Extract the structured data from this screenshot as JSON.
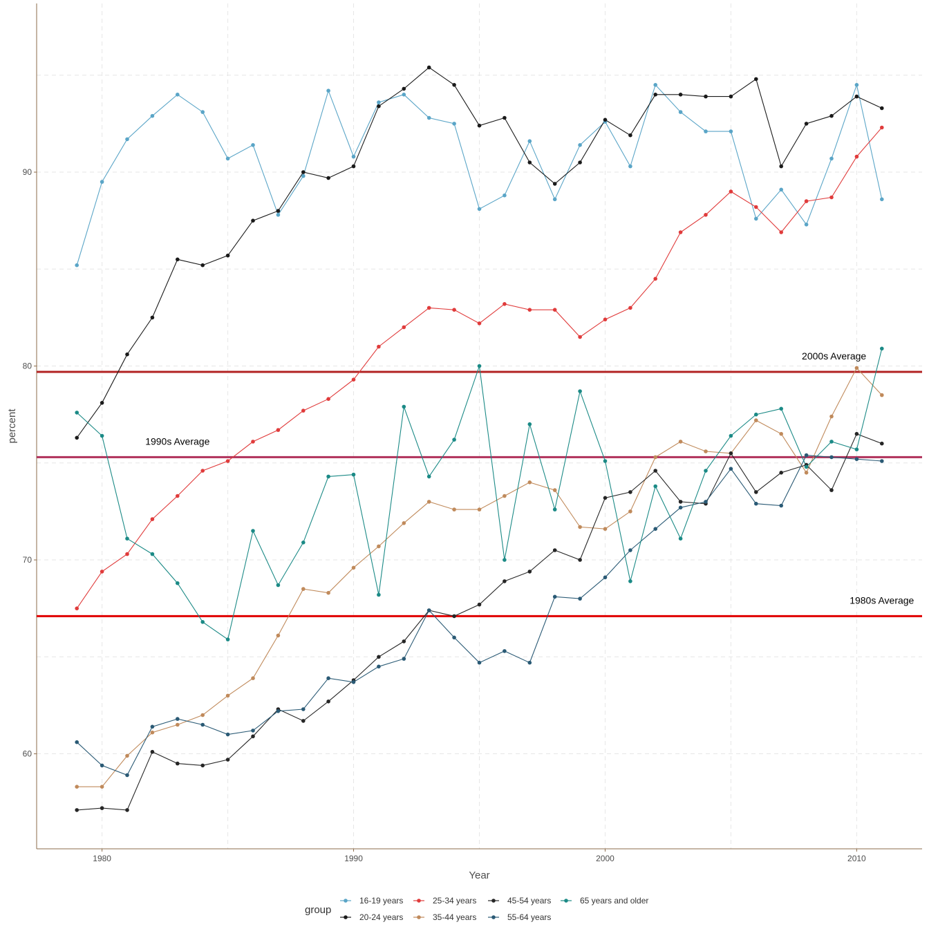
{
  "chart_data": {
    "type": "line",
    "xlabel": "Year",
    "ylabel": "percent",
    "xlim": [
      1977.4,
      2012.6
    ],
    "ylim": [
      55.1,
      98.7
    ],
    "x_ticks": [
      1980,
      1990,
      2000,
      2010
    ],
    "y_ticks": [
      60,
      70,
      80,
      90
    ],
    "grid": "dashed major and minor",
    "legend": {
      "title": "group",
      "position": "bottom"
    },
    "x": [
      1979,
      1980,
      1981,
      1982,
      1983,
      1984,
      1985,
      1986,
      1987,
      1988,
      1989,
      1990,
      1991,
      1992,
      1993,
      1994,
      1995,
      1996,
      1997,
      1998,
      1999,
      2000,
      2001,
      2002,
      2003,
      2004,
      2005,
      2006,
      2007,
      2008,
      2009,
      2010,
      2011
    ],
    "series": [
      {
        "name": "16-19 years",
        "color": "#5aa5c7",
        "values": [
          85.2,
          89.5,
          91.7,
          92.9,
          94.0,
          93.1,
          90.7,
          91.4,
          87.8,
          89.8,
          94.2,
          90.8,
          93.6,
          94.0,
          92.8,
          92.5,
          88.1,
          88.8,
          91.6,
          88.6,
          91.4,
          92.6,
          90.3,
          94.5,
          93.1,
          92.1,
          92.1,
          87.6,
          89.1,
          87.3,
          90.7,
          94.5,
          88.6
        ]
      },
      {
        "name": "20-24 years",
        "color": "#1a1a1a",
        "values": [
          76.3,
          78.1,
          80.6,
          82.5,
          85.5,
          85.2,
          85.7,
          87.5,
          88.0,
          90.0,
          89.7,
          90.3,
          93.4,
          94.3,
          95.4,
          94.5,
          92.4,
          92.8,
          90.5,
          89.4,
          90.5,
          92.7,
          91.9,
          94.0,
          94.0,
          93.9,
          93.9,
          94.8,
          90.3,
          92.5,
          92.9,
          93.9,
          93.3
        ]
      },
      {
        "name": "25-34 years",
        "color": "#e03b3b",
        "values": [
          67.5,
          69.4,
          70.3,
          72.1,
          73.3,
          74.6,
          75.1,
          76.1,
          76.7,
          77.7,
          78.3,
          79.3,
          81.0,
          82.0,
          83.0,
          82.9,
          82.2,
          83.2,
          82.9,
          82.9,
          81.5,
          82.4,
          83.0,
          84.5,
          86.9,
          87.8,
          89.0,
          88.2,
          86.9,
          88.5,
          88.7,
          90.8,
          92.3
        ]
      },
      {
        "name": "35-44 years",
        "color": "#c08a5b",
        "values": [
          58.3,
          58.3,
          59.9,
          61.1,
          61.5,
          62.0,
          63.0,
          63.9,
          66.1,
          68.5,
          68.3,
          69.6,
          70.7,
          71.9,
          73.0,
          72.6,
          72.6,
          73.3,
          74.0,
          73.6,
          71.7,
          71.6,
          72.5,
          75.3,
          76.1,
          75.6,
          75.5,
          77.2,
          76.5,
          74.5,
          77.4,
          79.9,
          78.5
        ]
      },
      {
        "name": "45-54 years",
        "color": "#262626",
        "values": [
          57.1,
          57.2,
          57.1,
          60.1,
          59.5,
          59.4,
          59.7,
          60.9,
          62.3,
          61.7,
          62.7,
          63.8,
          65.0,
          65.8,
          67.4,
          67.1,
          67.7,
          68.9,
          69.4,
          70.5,
          70.0,
          73.2,
          73.5,
          74.6,
          73.0,
          72.9,
          75.5,
          73.5,
          74.5,
          74.9,
          73.6,
          76.5,
          76.0
        ]
      },
      {
        "name": "55-64 years",
        "color": "#2a5a75",
        "values": [
          60.6,
          59.4,
          58.9,
          61.4,
          61.8,
          61.5,
          61.0,
          61.2,
          62.2,
          62.3,
          63.9,
          63.7,
          64.5,
          64.9,
          67.4,
          66.0,
          64.7,
          65.3,
          64.7,
          68.1,
          68.0,
          69.1,
          70.5,
          71.6,
          72.7,
          73.0,
          74.7,
          72.9,
          72.8,
          75.4,
          75.3,
          75.2,
          75.1
        ]
      },
      {
        "name": "65 years and older",
        "color": "#1b8a86",
        "values": [
          77.6,
          76.4,
          71.1,
          70.3,
          68.8,
          66.8,
          65.9,
          71.5,
          68.7,
          70.9,
          74.3,
          74.4,
          68.2,
          77.9,
          74.3,
          76.2,
          80.0,
          70.0,
          77.0,
          72.6,
          78.7,
          75.1,
          68.9,
          73.8,
          71.1,
          74.6,
          76.4,
          77.5,
          77.8,
          74.8,
          76.1,
          75.7,
          80.9
        ]
      }
    ],
    "reference_lines": [
      {
        "label": "2000s Average",
        "value": 79.7,
        "color": "#b22222",
        "label_x": 2009.1
      },
      {
        "label": "1990s Average",
        "value": 75.3,
        "color": "#b0305a",
        "label_x": 1983.0
      },
      {
        "label": "1980s Average",
        "value": 67.1,
        "color": "#e00000",
        "label_x": 2011.0
      }
    ]
  }
}
